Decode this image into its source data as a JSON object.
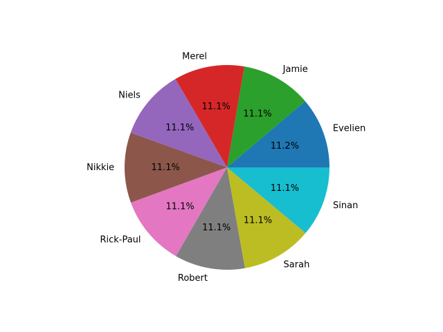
{
  "chart_data": {
    "type": "pie",
    "title": "",
    "start_angle_deg": 0,
    "direction": "counterclockwise",
    "slices": [
      {
        "label": "Evelien",
        "percent": "11.2%",
        "value": 11.2,
        "color": "#1f77b4"
      },
      {
        "label": "Jamie",
        "percent": "11.1%",
        "value": 11.1,
        "color": "#2ca02c"
      },
      {
        "label": "Merel",
        "percent": "11.1%",
        "value": 11.1,
        "color": "#d62728"
      },
      {
        "label": "Niels",
        "percent": "11.1%",
        "value": 11.1,
        "color": "#9467bd"
      },
      {
        "label": "Nikkie",
        "percent": "11.1%",
        "value": 11.1,
        "color": "#8c564b"
      },
      {
        "label": "Rick-Paul",
        "percent": "11.1%",
        "value": 11.1,
        "color": "#e377c2"
      },
      {
        "label": "Robert",
        "percent": "11.1%",
        "value": 11.1,
        "color": "#7f7f7f"
      },
      {
        "label": "Sarah",
        "percent": "11.1%",
        "value": 11.1,
        "color": "#bcbd22"
      },
      {
        "label": "Sinan",
        "percent": "11.1%",
        "value": 11.1,
        "color": "#17becf"
      }
    ]
  }
}
